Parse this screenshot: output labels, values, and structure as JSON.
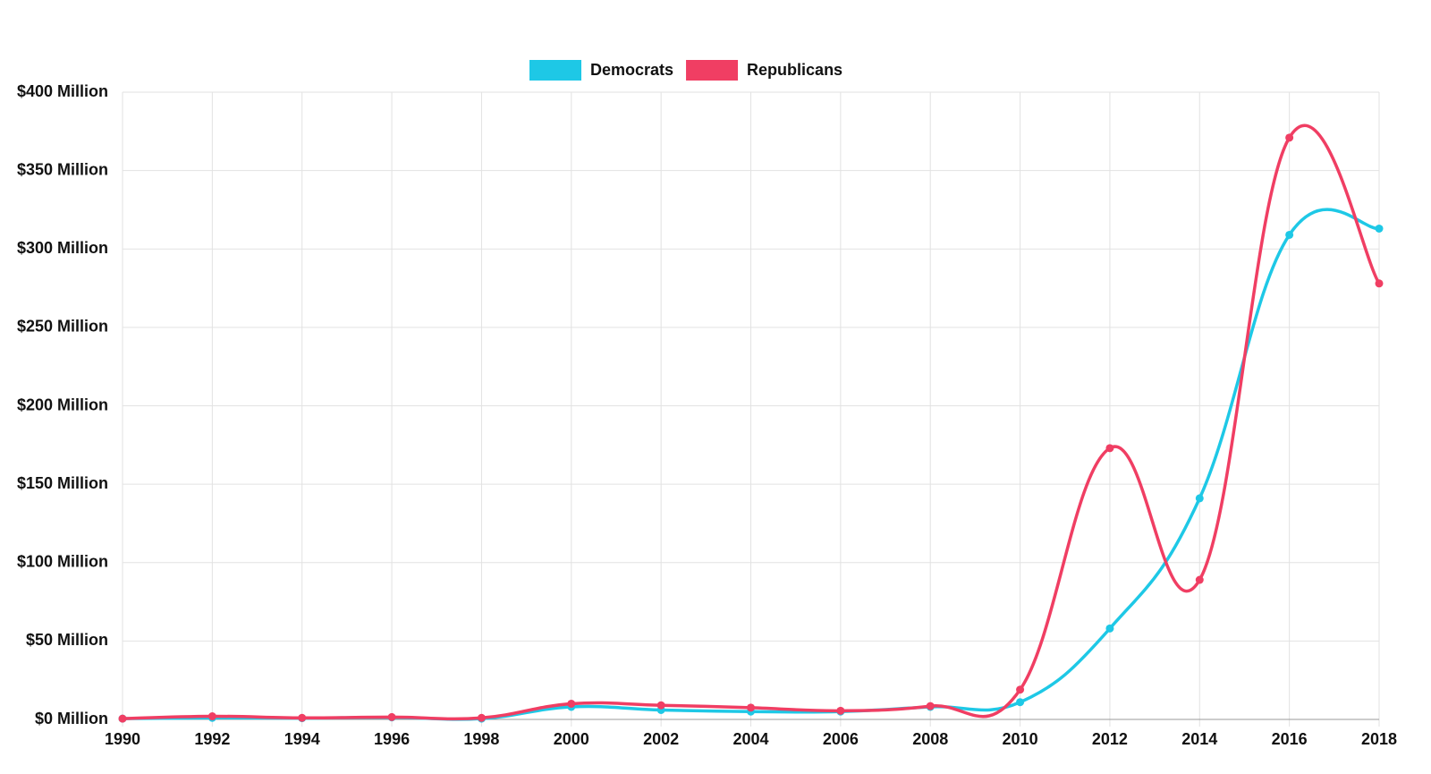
{
  "chart_data": {
    "type": "line",
    "categories": [
      "1990",
      "1992",
      "1994",
      "1996",
      "1998",
      "2000",
      "2002",
      "2004",
      "2006",
      "2008",
      "2010",
      "2012",
      "2014",
      "2016",
      "2018"
    ],
    "series": [
      {
        "name": "Democrats",
        "color": "#1ec8e6",
        "values": [
          0.5,
          1,
          0.8,
          1.3,
          0.5,
          8,
          6,
          5,
          5,
          8,
          11,
          58,
          141,
          309,
          313
        ]
      },
      {
        "name": "Republicans",
        "color": "#f03e63",
        "values": [
          0.5,
          2,
          1,
          1.5,
          1,
          10,
          9,
          7.5,
          5.5,
          8.5,
          19,
          173,
          89,
          371,
          278
        ]
      }
    ],
    "ylim": [
      0,
      400
    ],
    "yticks": [
      {
        "value": 0,
        "label": "$0 Million"
      },
      {
        "value": 50,
        "label": "$50 Million"
      },
      {
        "value": 100,
        "label": "$100 Million"
      },
      {
        "value": 150,
        "label": "$150 Million"
      },
      {
        "value": 200,
        "label": "$200 Million"
      },
      {
        "value": 250,
        "label": "$250 Million"
      },
      {
        "value": 300,
        "label": "$300 Million"
      },
      {
        "value": 350,
        "label": "$350 Million"
      },
      {
        "value": 400,
        "label": "$400 Million"
      }
    ],
    "grid": true,
    "legend": "top"
  }
}
